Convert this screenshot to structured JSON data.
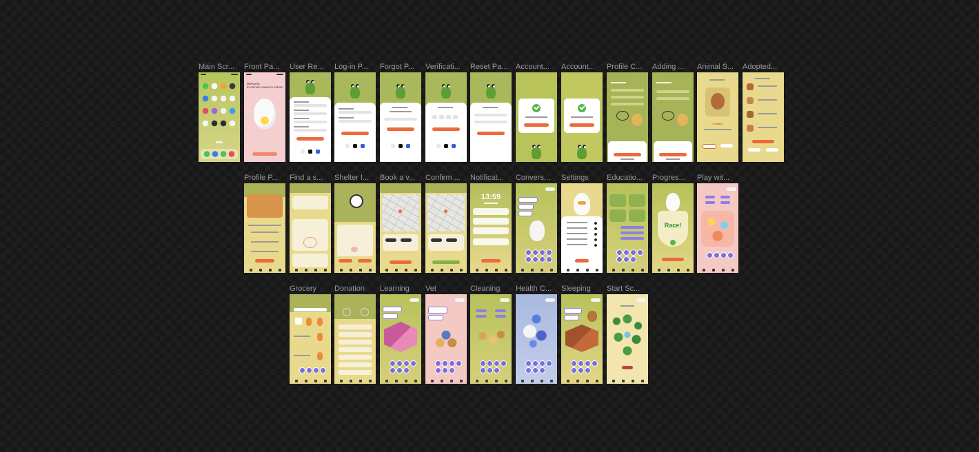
{
  "canvas": {
    "frames": [
      {
        "label": "Main Scr...",
        "screen": "ios-home"
      },
      {
        "label": "Front Pa...",
        "screen": "front",
        "title": "Welcome\nto Animal Lovers in Action!"
      },
      {
        "label": "User Re...",
        "screen": "register"
      },
      {
        "label": "Log-in P...",
        "screen": "login"
      },
      {
        "label": "Forgot P...",
        "screen": "forgot"
      },
      {
        "label": "Verificati...",
        "screen": "verify"
      },
      {
        "label": "Reset Pa...",
        "screen": "reset"
      },
      {
        "label": "Account...",
        "screen": "account-success"
      },
      {
        "label": "Account...",
        "screen": "account-success"
      },
      {
        "label": "Profile C...",
        "screen": "profile-create"
      },
      {
        "label": "Adding ...",
        "screen": "adding"
      },
      {
        "label": "Animal S...",
        "screen": "animal-select",
        "pet_name": "DOBBA"
      },
      {
        "label": "Adopted...",
        "screen": "adopted"
      },
      {
        "label": "Profile P...",
        "screen": "profile-page"
      },
      {
        "label": "Find a s...",
        "screen": "find-shelter"
      },
      {
        "label": "Shelter I...",
        "screen": "shelter-info"
      },
      {
        "label": "Book a v...",
        "screen": "map-book"
      },
      {
        "label": "Confirm ...",
        "screen": "map-confirm"
      },
      {
        "label": "Notificat...",
        "screen": "notification",
        "clock": "13:59"
      },
      {
        "label": "Convers...",
        "screen": "conversation"
      },
      {
        "label": "Settings",
        "screen": "settings"
      },
      {
        "label": "Educatio...",
        "screen": "education"
      },
      {
        "label": "Progres...",
        "screen": "progress",
        "badge": "Race!"
      },
      {
        "label": "Play wit...",
        "screen": "play"
      },
      {
        "label": "Grocery",
        "screen": "grocery"
      },
      {
        "label": "Donation",
        "screen": "donation"
      },
      {
        "label": "Learning",
        "screen": "learning"
      },
      {
        "label": "Vet",
        "screen": "vet"
      },
      {
        "label": "Cleaning",
        "screen": "cleaning"
      },
      {
        "label": "Health C...",
        "screen": "health"
      },
      {
        "label": "Sleeping",
        "screen": "sleeping"
      },
      {
        "label": "Start Sc...",
        "screen": "start"
      }
    ]
  },
  "colors": {
    "olive": "#b3bd5c",
    "olive_light": "#c9cf7a",
    "cream": "#f1e3a6",
    "orange": "#ec6a3b",
    "pink": "#f4c8c8",
    "purple": "#8d7fe6",
    "green": "#54b64a"
  }
}
